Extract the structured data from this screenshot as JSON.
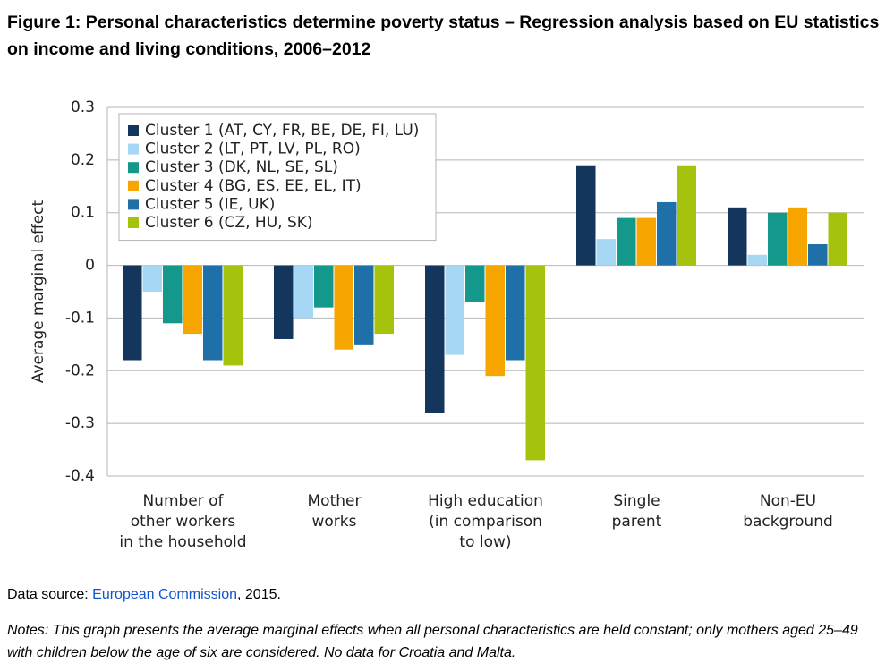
{
  "chart_data": {
    "type": "bar",
    "title": "Figure 1: Personal characteristics determine poverty status – Regression analysis based on EU statistics on income and living conditions, 2006–2012",
    "y_label": "Average marginal effect",
    "categories": [
      "Number of\nother workers\nin the household",
      "Mother\nworks",
      "High education\n(in comparison\nto low)",
      "Single\nparent",
      "Non-EU\nbackground"
    ],
    "series": [
      {
        "name": "Cluster 1 (AT, CY, FR, BE, DE, FI, LU)",
        "color": "#14365d",
        "values": [
          -0.18,
          -0.14,
          -0.28,
          0.19,
          0.11
        ]
      },
      {
        "name": "Cluster 2 (LT, PT, LV, PL, RO)",
        "color": "#a6d8f5",
        "values": [
          -0.05,
          -0.1,
          -0.17,
          0.05,
          0.02
        ]
      },
      {
        "name": "Cluster 3 (DK, NL, SE, SL)",
        "color": "#14988c",
        "values": [
          -0.11,
          -0.08,
          -0.07,
          0.09,
          0.1
        ]
      },
      {
        "name": "Cluster 4 (BG, ES, EE, EL, IT)",
        "color": "#f7a600",
        "values": [
          -0.13,
          -0.16,
          -0.21,
          0.09,
          0.11
        ]
      },
      {
        "name": "Cluster 5 (IE, UK)",
        "color": "#1f6fa8",
        "values": [
          -0.18,
          -0.15,
          -0.18,
          0.12,
          0.04
        ]
      },
      {
        "name": "Cluster 6 (CZ, HU, SK)",
        "color": "#a5c30c",
        "values": [
          -0.19,
          -0.13,
          -0.37,
          0.19,
          0.1
        ]
      }
    ],
    "ylim": [
      -0.4,
      0.3
    ],
    "yticks": [
      0.3,
      0.2,
      0.1,
      0,
      -0.1,
      -0.2,
      -0.3,
      -0.4
    ],
    "grid": true,
    "legend": "top-left"
  },
  "source": {
    "prefix": "Data source: ",
    "link": "European Commission",
    "suffix": ", 2015."
  },
  "notes": "Notes: This graph presents the average marginal effects when all personal characteristics are held constant; only mothers aged 25–49 with children below the age of six are considered. No data for Croatia and Malta."
}
